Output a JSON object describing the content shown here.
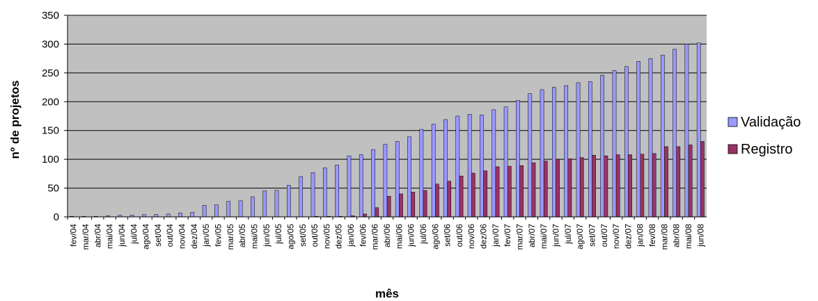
{
  "chart_data": {
    "type": "bar",
    "title": "",
    "xlabel": "mês",
    "ylabel": "nº de projetos",
    "ylim": [
      0,
      350
    ],
    "yticks": [
      0,
      50,
      100,
      150,
      200,
      250,
      300,
      350
    ],
    "grid": true,
    "legend_position": "right",
    "colors": {
      "plot_background": "#c0c0c0",
      "validacao": "#9999ff",
      "registro": "#993366"
    },
    "categories": [
      "fev/04",
      "mar/04",
      "abr/04",
      "mai/04",
      "jun/04",
      "jul/04",
      "ago/04",
      "set/04",
      "out/04",
      "nov/04",
      "dez/04",
      "jan/05",
      "fev/05",
      "mar/05",
      "abr/05",
      "mai/05",
      "jun/05",
      "jul/05",
      "ago/05",
      "set/05",
      "out/05",
      "nov/05",
      "dez/05",
      "jan/06",
      "fev/06",
      "mar/06",
      "abr/06",
      "mai/06",
      "jun/06",
      "jul/06",
      "ago/06",
      "set/06",
      "out/06",
      "nov/06",
      "dez/06",
      "jan/07",
      "fev/07",
      "mar/07",
      "abr/07",
      "mai/07",
      "jun/07",
      "jul/07",
      "ago/07",
      "set/07",
      "out/07",
      "nov/07",
      "dez/07",
      "jan/08",
      "fev/08",
      "mar/08",
      "abr/08",
      "mai/08",
      "jun/08"
    ],
    "series": [
      {
        "name": "Validação",
        "values": [
          1,
          1,
          1,
          2,
          3,
          3,
          4,
          4,
          5,
          7,
          8,
          20,
          21,
          27,
          28,
          35,
          45,
          46,
          55,
          70,
          77,
          85,
          90,
          106,
          108,
          117,
          126,
          131,
          139,
          152,
          161,
          169,
          175,
          178,
          177,
          186,
          191,
          202,
          214,
          221,
          225,
          228,
          233,
          235,
          246,
          254,
          261,
          270,
          275,
          281,
          291,
          300,
          302
        ]
      },
      {
        "name": "Registro",
        "values": [
          0,
          0,
          0,
          0,
          0,
          0,
          0,
          0,
          0,
          0,
          0,
          0,
          0,
          0,
          0,
          0,
          0,
          0,
          0,
          0,
          1,
          1,
          1,
          2,
          5,
          16,
          36,
          40,
          43,
          46,
          57,
          62,
          71,
          76,
          80,
          87,
          88,
          89,
          94,
          97,
          100,
          101,
          103,
          107,
          106,
          108,
          108,
          109,
          110,
          122,
          122,
          125,
          131
        ]
      }
    ]
  }
}
